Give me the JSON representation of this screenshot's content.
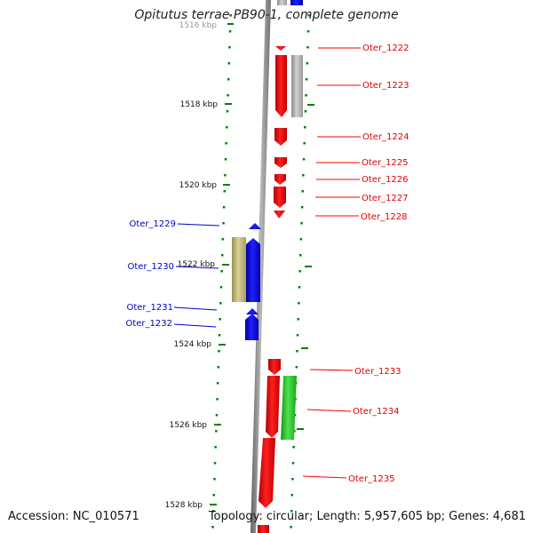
{
  "title": "Opitutus terrae PB90-1, complete genome",
  "accession_label": "Accession: NC_010571",
  "topology_label": "Topology: circular; Length: 5,957,605 bp; Genes: 4,681",
  "colors": {
    "forward": "#ff0000",
    "reverse": "#0000ff",
    "gray_feature": "#b0b0b0",
    "olive_feature": "#c8c080",
    "green_feature": "#30cc30",
    "backbone": "#808080",
    "tick": "#008000"
  },
  "ticks": [
    {
      "label": "1516 kbp"
    },
    {
      "label": "1518 kbp"
    },
    {
      "label": "1520 kbp"
    },
    {
      "label": "1522 kbp"
    },
    {
      "label": "1524 kbp"
    },
    {
      "label": "1526 kbp"
    },
    {
      "label": "1528 kbp"
    }
  ],
  "genes_forward": [
    {
      "label": "Oter_1222"
    },
    {
      "label": "Oter_1223"
    },
    {
      "label": "Oter_1224"
    },
    {
      "label": "Oter_1225"
    },
    {
      "label": "Oter_1226"
    },
    {
      "label": "Oter_1227"
    },
    {
      "label": "Oter_1228"
    },
    {
      "label": "Oter_1233"
    },
    {
      "label": "Oter_1234"
    },
    {
      "label": "Oter_1235"
    }
  ],
  "genes_reverse": [
    {
      "label": "Oter_1229"
    },
    {
      "label": "Oter_1230"
    },
    {
      "label": "Oter_1231"
    },
    {
      "label": "Oter_1232"
    }
  ]
}
